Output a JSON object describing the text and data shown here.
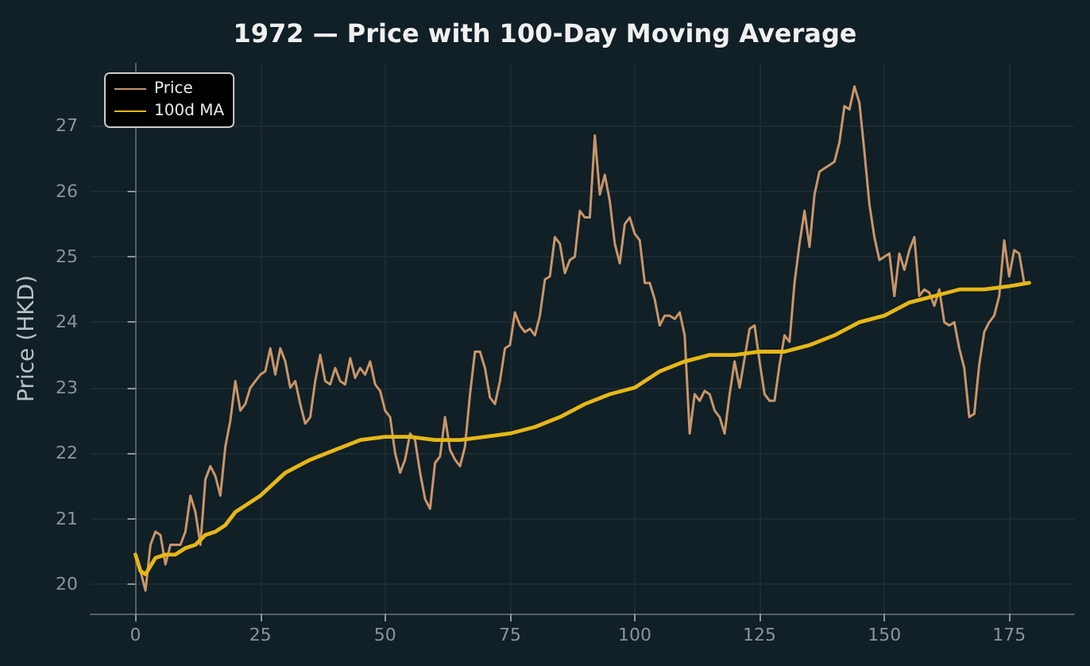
{
  "chart_data": {
    "type": "line",
    "title": "1972 — Price with 100-Day Moving Average",
    "ylabel": "Price (HKD)",
    "xlim": [
      -9,
      188
    ],
    "xticks": [
      0,
      25,
      50,
      75,
      100,
      125,
      150,
      175
    ],
    "ylim": [
      19.55,
      27.95
    ],
    "yticks": [
      20,
      21,
      22,
      23,
      24,
      25,
      26,
      27
    ],
    "grid": true,
    "legend": "top left",
    "marker": "none",
    "series": [
      {
        "name": "Price",
        "color": "#c8966a",
        "x": [
          0,
          1,
          2,
          3,
          4,
          5,
          6,
          7,
          8,
          9,
          10,
          11,
          12,
          13,
          14,
          15,
          16,
          17,
          18,
          19,
          20,
          21,
          22,
          23,
          24,
          25,
          26,
          27,
          28,
          29,
          30,
          31,
          32,
          33,
          34,
          35,
          36,
          37,
          38,
          39,
          40,
          41,
          42,
          43,
          44,
          45,
          46,
          47,
          48,
          49,
          50,
          51,
          52,
          53,
          54,
          55,
          56,
          57,
          58,
          59,
          60,
          61,
          62,
          63,
          64,
          65,
          66,
          67,
          68,
          69,
          70,
          71,
          72,
          73,
          74,
          75,
          76,
          77,
          78,
          79,
          80,
          81,
          82,
          83,
          84,
          85,
          86,
          87,
          88,
          89,
          90,
          91,
          92,
          93,
          94,
          95,
          96,
          97,
          98,
          99,
          100,
          101,
          102,
          103,
          104,
          105,
          106,
          107,
          108,
          109,
          110,
          111,
          112,
          113,
          114,
          115,
          116,
          117,
          118,
          119,
          120,
          121,
          122,
          123,
          124,
          125,
          126,
          127,
          128,
          129,
          130,
          131,
          132,
          133,
          134,
          135,
          136,
          137,
          138,
          139,
          140,
          141,
          142,
          143,
          144,
          145,
          146,
          147,
          148,
          149,
          150,
          151,
          152,
          153,
          154,
          155,
          156,
          157,
          158,
          159,
          160,
          161,
          162,
          163,
          164,
          165,
          166,
          167,
          168,
          169,
          170,
          171,
          172,
          173,
          174,
          175,
          176,
          177,
          178
        ],
        "values": [
          20.45,
          20.2,
          19.9,
          20.6,
          20.8,
          20.75,
          20.3,
          20.6,
          20.6,
          20.6,
          20.8,
          21.35,
          21.1,
          20.6,
          21.6,
          21.8,
          21.65,
          21.35,
          22.1,
          22.5,
          23.1,
          22.65,
          22.75,
          23.0,
          23.1,
          23.2,
          23.25,
          23.6,
          23.2,
          23.6,
          23.4,
          23.0,
          23.1,
          22.75,
          22.45,
          22.55,
          23.1,
          23.5,
          23.1,
          23.05,
          23.3,
          23.1,
          23.05,
          23.45,
          23.15,
          23.3,
          23.2,
          23.4,
          23.05,
          22.95,
          22.65,
          22.55,
          22.0,
          21.7,
          21.9,
          22.3,
          22.2,
          21.7,
          21.3,
          21.15,
          21.85,
          21.95,
          22.55,
          22.05,
          21.9,
          21.8,
          22.1,
          22.9,
          23.55,
          23.55,
          23.3,
          22.85,
          22.75,
          23.1,
          23.6,
          23.65,
          24.15,
          23.95,
          23.85,
          23.9,
          23.8,
          24.1,
          24.65,
          24.7,
          25.3,
          25.2,
          24.75,
          24.95,
          25.0,
          25.7,
          25.6,
          25.6,
          26.85,
          25.95,
          26.25,
          25.85,
          25.2,
          24.9,
          25.5,
          25.6,
          25.35,
          25.25,
          24.6,
          24.6,
          24.35,
          23.95,
          24.1,
          24.1,
          24.05,
          24.15,
          23.8,
          22.3,
          22.9,
          22.8,
          22.95,
          22.9,
          22.65,
          22.55,
          22.3,
          22.9,
          23.4,
          23.0,
          23.45,
          23.9,
          23.95,
          23.4,
          22.9,
          22.8,
          22.8,
          23.35,
          23.8,
          23.7,
          24.6,
          25.2,
          25.7,
          25.15,
          25.95,
          26.3,
          26.35,
          26.4,
          26.45,
          26.75,
          27.3,
          27.25,
          27.6,
          27.35,
          26.6,
          25.8,
          25.3,
          24.95,
          25.0,
          25.05,
          24.4,
          25.05,
          24.8,
          25.1,
          25.3,
          24.4,
          24.5,
          24.45,
          24.25,
          24.5,
          24.0,
          23.95,
          24.0,
          23.6,
          23.3,
          22.55,
          22.6,
          23.35,
          23.85,
          24.0,
          24.1,
          24.4,
          25.25,
          24.7,
          25.1,
          25.05,
          24.6
        ]
      },
      {
        "name": "100d MA",
        "color": "#e6b816",
        "x": [
          0,
          1,
          2,
          4,
          6,
          8,
          10,
          12,
          14,
          16,
          18,
          20,
          25,
          30,
          35,
          40,
          45,
          50,
          55,
          60,
          65,
          70,
          75,
          80,
          85,
          90,
          95,
          100,
          105,
          110,
          115,
          120,
          125,
          130,
          135,
          140,
          145,
          150,
          155,
          160,
          165,
          170,
          175,
          179
        ],
        "values": [
          20.45,
          20.2,
          20.15,
          20.4,
          20.45,
          20.45,
          20.55,
          20.6,
          20.75,
          20.8,
          20.9,
          21.1,
          21.35,
          21.7,
          21.9,
          22.05,
          22.2,
          22.25,
          22.25,
          22.2,
          22.2,
          22.25,
          22.3,
          22.4,
          22.55,
          22.75,
          22.9,
          23.0,
          23.25,
          23.4,
          23.5,
          23.5,
          23.55,
          23.55,
          23.65,
          23.8,
          24.0,
          24.1,
          24.3,
          24.4,
          24.5,
          24.5,
          24.55,
          24.6
        ]
      }
    ]
  }
}
